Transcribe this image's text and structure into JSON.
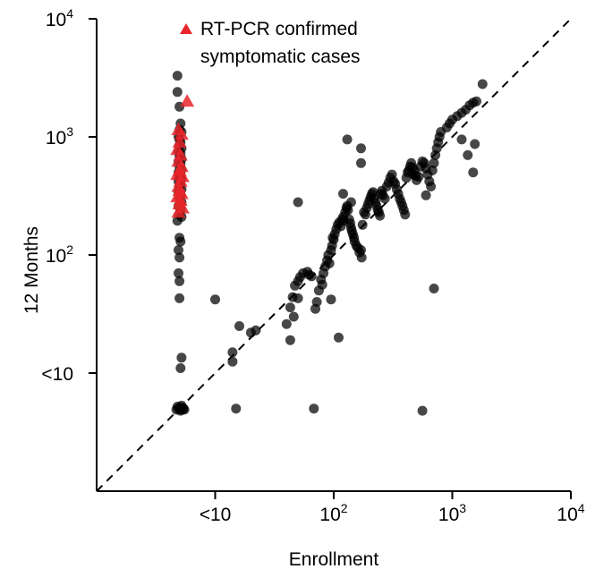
{
  "chart_data": {
    "type": "scatter",
    "xlabel": "Enrollment",
    "ylabel": "12 Months",
    "scale": "log10",
    "xlim": [
      1,
      10000
    ],
    "ylim": [
      1,
      10000
    ],
    "below_detection_label": "<10",
    "x_ticks": [
      {
        "value": 10,
        "base": "<10",
        "exp": ""
      },
      {
        "value": 100,
        "base": "10",
        "exp": "2"
      },
      {
        "value": 1000,
        "base": "10",
        "exp": "3"
      },
      {
        "value": 10000,
        "base": "10",
        "exp": "4"
      }
    ],
    "y_ticks": [
      {
        "value": 10,
        "base": "<10",
        "exp": ""
      },
      {
        "value": 100,
        "base": "10",
        "exp": "2"
      },
      {
        "value": 1000,
        "base": "10",
        "exp": "3"
      },
      {
        "value": 10000,
        "base": "10",
        "exp": "4"
      }
    ],
    "reference_line": "y = x (dashed)",
    "legend": {
      "label_line1": "RT-PCR confirmed",
      "label_line2": "symptomatic cases",
      "marker": "triangle",
      "color": "#e8262b",
      "position": "top-center"
    },
    "colors": {
      "points": "#000000",
      "highlight": "#e8262b"
    },
    "series": [
      {
        "name": "",
        "marker": "circle",
        "color": "#000000",
        "points": [
          [
            4.8,
            3300
          ],
          [
            4.8,
            2400
          ],
          [
            5,
            1800
          ],
          [
            5.1,
            1300
          ],
          [
            5,
            1150
          ],
          [
            5.2,
            1100
          ],
          [
            4.9,
            1000
          ],
          [
            5,
            950
          ],
          [
            5.1,
            900
          ],
          [
            5,
            850
          ],
          [
            5.2,
            800
          ],
          [
            4.9,
            760
          ],
          [
            5.1,
            720
          ],
          [
            5,
            690
          ],
          [
            5.2,
            650
          ],
          [
            4.9,
            620
          ],
          [
            5.1,
            590
          ],
          [
            5,
            560
          ],
          [
            5.2,
            530
          ],
          [
            4.9,
            500
          ],
          [
            5.1,
            480
          ],
          [
            5,
            460
          ],
          [
            5.2,
            440
          ],
          [
            4.9,
            420
          ],
          [
            5.1,
            400
          ],
          [
            5,
            380
          ],
          [
            5.2,
            360
          ],
          [
            4.9,
            340
          ],
          [
            5.1,
            320
          ],
          [
            5,
            300
          ],
          [
            5.2,
            280
          ],
          [
            4.9,
            260
          ],
          [
            5.1,
            240
          ],
          [
            5,
            220
          ],
          [
            5.2,
            210
          ],
          [
            4.8,
            195
          ],
          [
            5,
            140
          ],
          [
            5.1,
            130
          ],
          [
            4.9,
            110
          ],
          [
            5,
            95
          ],
          [
            4.9,
            70
          ],
          [
            5,
            60
          ],
          [
            5,
            43
          ],
          [
            5.2,
            13.5
          ],
          [
            5.1,
            11
          ],
          [
            5,
            5.1
          ],
          [
            5.2,
            4.9
          ],
          [
            4.8,
            5.2
          ],
          [
            5.4,
            5
          ],
          [
            5.1,
            4.8
          ],
          [
            4.9,
            5
          ],
          [
            5.3,
            5.1
          ],
          [
            5.5,
            4.9
          ],
          [
            4.7,
            4.9
          ],
          [
            5.2,
            5.3
          ],
          [
            10,
            42
          ],
          [
            14,
            15
          ],
          [
            14,
            12.5
          ],
          [
            15,
            5
          ],
          [
            16,
            25
          ],
          [
            20,
            22
          ],
          [
            22,
            23
          ],
          [
            40,
            26
          ],
          [
            43,
            19
          ],
          [
            46,
            30
          ],
          [
            43,
            36
          ],
          [
            45,
            44
          ],
          [
            47,
            55
          ],
          [
            50,
            60
          ],
          [
            52,
            65
          ],
          [
            55,
            70
          ],
          [
            60,
            72
          ],
          [
            62,
            68
          ],
          [
            65,
            66
          ],
          [
            68,
            5
          ],
          [
            70,
            35
          ],
          [
            72,
            40
          ],
          [
            75,
            50
          ],
          [
            78,
            62
          ],
          [
            80,
            56
          ],
          [
            82,
            70
          ],
          [
            85,
            80
          ],
          [
            88,
            90
          ],
          [
            90,
            100
          ],
          [
            92,
            85
          ],
          [
            95,
            110
          ],
          [
            97,
            120
          ],
          [
            95,
            42
          ],
          [
            98,
            140
          ],
          [
            100,
            135
          ],
          [
            102,
            150
          ],
          [
            105,
            165
          ],
          [
            108,
            180
          ],
          [
            110,
            20
          ],
          [
            112,
            190
          ],
          [
            115,
            175
          ],
          [
            118,
            200
          ],
          [
            120,
            210
          ],
          [
            122,
            195
          ],
          [
            125,
            230
          ],
          [
            128,
            250
          ],
          [
            130,
            260
          ],
          [
            132,
            240
          ],
          [
            135,
            200
          ],
          [
            138,
            185
          ],
          [
            140,
            170
          ],
          [
            142,
            160
          ],
          [
            145,
            150
          ],
          [
            148,
            140
          ],
          [
            150,
            130
          ],
          [
            155,
            120
          ],
          [
            160,
            115
          ],
          [
            165,
            105
          ],
          [
            170,
            110
          ],
          [
            172,
            95
          ],
          [
            175,
            180
          ],
          [
            180,
            230
          ],
          [
            185,
            220
          ],
          [
            190,
            250
          ],
          [
            195,
            270
          ],
          [
            200,
            290
          ],
          [
            205,
            310
          ],
          [
            210,
            330
          ],
          [
            215,
            340
          ],
          [
            220,
            300
          ],
          [
            225,
            280
          ],
          [
            230,
            260
          ],
          [
            235,
            240
          ],
          [
            240,
            230
          ],
          [
            245,
            215
          ],
          [
            250,
            330
          ],
          [
            255,
            350
          ],
          [
            260,
            320
          ],
          [
            270,
            300
          ],
          [
            280,
            380
          ],
          [
            290,
            410
          ],
          [
            300,
            450
          ],
          [
            310,
            480
          ],
          [
            320,
            420
          ],
          [
            330,
            400
          ],
          [
            340,
            360
          ],
          [
            350,
            330
          ],
          [
            360,
            300
          ],
          [
            370,
            280
          ],
          [
            380,
            260
          ],
          [
            390,
            240
          ],
          [
            400,
            220
          ],
          [
            410,
            450
          ],
          [
            420,
            500
          ],
          [
            430,
            520
          ],
          [
            440,
            560
          ],
          [
            450,
            600
          ],
          [
            460,
            550
          ],
          [
            470,
            480
          ],
          [
            480,
            520
          ],
          [
            490,
            470
          ],
          [
            500,
            430
          ],
          [
            520,
            460
          ],
          [
            540,
            560
          ],
          [
            560,
            620
          ],
          [
            580,
            600
          ],
          [
            600,
            540
          ],
          [
            620,
            480
          ],
          [
            640,
            420
          ],
          [
            660,
            380
          ],
          [
            680,
            520
          ],
          [
            700,
            600
          ],
          [
            720,
            700
          ],
          [
            740,
            800
          ],
          [
            760,
            900
          ],
          [
            780,
            1000
          ],
          [
            800,
            1100
          ],
          [
            900,
            1200
          ],
          [
            950,
            1300
          ],
          [
            1000,
            1400
          ],
          [
            1100,
            1500
          ],
          [
            1200,
            1600
          ],
          [
            1300,
            1700
          ],
          [
            1400,
            1850
          ],
          [
            1500,
            1950
          ],
          [
            1600,
            2000
          ],
          [
            1800,
            2800
          ],
          [
            1200,
            950
          ],
          [
            1350,
            700
          ],
          [
            1500,
            500
          ],
          [
            1550,
            870
          ],
          [
            600,
            320
          ],
          [
            700,
            52
          ],
          [
            560,
            4.8
          ],
          [
            170,
            600
          ],
          [
            170,
            800
          ],
          [
            130,
            950
          ],
          [
            140,
            280
          ],
          [
            120,
            330
          ],
          [
            50,
            280
          ],
          [
            50,
            43
          ]
        ]
      },
      {
        "name": "RT-PCR confirmed symptomatic cases",
        "marker": "triangle",
        "color": "#e8262b",
        "points": [
          [
            5.8,
            2000
          ],
          [
            4.9,
            1150
          ],
          [
            5.2,
            1050
          ],
          [
            5,
            900
          ],
          [
            4.8,
            780
          ],
          [
            5.1,
            700
          ],
          [
            4.9,
            620
          ],
          [
            5.2,
            560
          ],
          [
            5,
            520
          ],
          [
            4.8,
            480
          ],
          [
            5.3,
            460
          ],
          [
            5.1,
            420
          ],
          [
            4.9,
            380
          ],
          [
            5,
            350
          ],
          [
            5.2,
            330
          ],
          [
            4.8,
            310
          ],
          [
            5.1,
            290
          ],
          [
            5,
            270
          ],
          [
            5.3,
            250
          ],
          [
            4.9,
            230
          ]
        ]
      }
    ]
  }
}
